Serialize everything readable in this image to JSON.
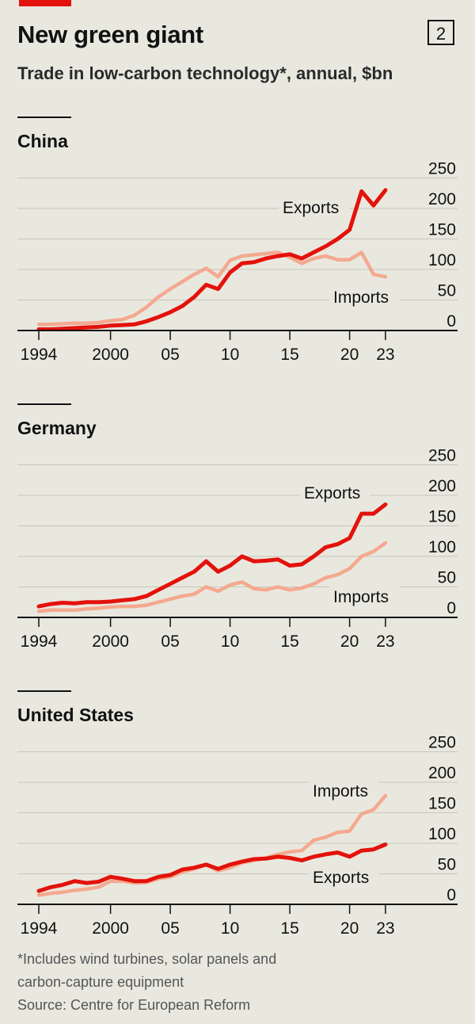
{
  "header": {
    "title": "New green giant",
    "chart_number": "2",
    "subtitle": "Trade in low-carbon technology*, annual, $bn"
  },
  "chart_data": [
    {
      "type": "line",
      "title": "China",
      "x": [
        1994,
        1995,
        1996,
        1997,
        1998,
        1999,
        2000,
        2001,
        2002,
        2003,
        2004,
        2005,
        2006,
        2007,
        2008,
        2009,
        2010,
        2011,
        2012,
        2013,
        2014,
        2015,
        2016,
        2017,
        2018,
        2019,
        2020,
        2021,
        2022,
        2023
      ],
      "x_tick_labels": [
        "1994",
        "2000",
        "05",
        "10",
        "15",
        "20",
        "23"
      ],
      "y_ticks": [
        0,
        50,
        100,
        150,
        200,
        250
      ],
      "ylim": [
        0,
        250
      ],
      "series": [
        {
          "name": "Exports",
          "color": "#e3120b",
          "values": [
            2,
            2,
            3,
            4,
            5,
            6,
            8,
            9,
            10,
            15,
            22,
            30,
            40,
            55,
            75,
            68,
            95,
            110,
            112,
            118,
            122,
            125,
            118,
            128,
            138,
            150,
            165,
            228,
            205,
            230
          ]
        },
        {
          "name": "Imports",
          "color": "#f4a98f",
          "values": [
            10,
            10,
            11,
            12,
            12,
            13,
            16,
            18,
            25,
            38,
            55,
            68,
            80,
            92,
            102,
            88,
            115,
            122,
            124,
            126,
            128,
            120,
            110,
            118,
            122,
            116,
            116,
            128,
            92,
            88
          ]
        }
      ],
      "series_labels": [
        "Exports",
        "Imports"
      ],
      "grid": true
    },
    {
      "type": "line",
      "title": "Germany",
      "x": [
        1994,
        1995,
        1996,
        1997,
        1998,
        1999,
        2000,
        2001,
        2002,
        2003,
        2004,
        2005,
        2006,
        2007,
        2008,
        2009,
        2010,
        2011,
        2012,
        2013,
        2014,
        2015,
        2016,
        2017,
        2018,
        2019,
        2020,
        2021,
        2022,
        2023
      ],
      "x_tick_labels": [
        "1994",
        "2000",
        "05",
        "10",
        "15",
        "20",
        "23"
      ],
      "y_ticks": [
        0,
        50,
        100,
        150,
        200,
        250
      ],
      "ylim": [
        0,
        250
      ],
      "series": [
        {
          "name": "Exports",
          "color": "#e3120b",
          "values": [
            18,
            22,
            24,
            23,
            25,
            25,
            26,
            28,
            30,
            35,
            45,
            55,
            65,
            75,
            92,
            75,
            85,
            100,
            92,
            93,
            95,
            85,
            87,
            100,
            115,
            120,
            130,
            170,
            170,
            185
          ]
        },
        {
          "name": "Imports",
          "color": "#f4a98f",
          "values": [
            10,
            12,
            12,
            12,
            14,
            15,
            17,
            18,
            18,
            20,
            25,
            30,
            35,
            38,
            50,
            43,
            53,
            58,
            47,
            45,
            50,
            45,
            48,
            55,
            65,
            70,
            80,
            100,
            108,
            122
          ]
        }
      ],
      "series_labels": [
        "Exports",
        "Imports"
      ],
      "grid": true
    },
    {
      "type": "line",
      "title": "United States",
      "x": [
        1994,
        1995,
        1996,
        1997,
        1998,
        1999,
        2000,
        2001,
        2002,
        2003,
        2004,
        2005,
        2006,
        2007,
        2008,
        2009,
        2010,
        2011,
        2012,
        2013,
        2014,
        2015,
        2016,
        2017,
        2018,
        2019,
        2020,
        2021,
        2022,
        2023
      ],
      "x_tick_labels": [
        "1994",
        "2000",
        "05",
        "10",
        "15",
        "20",
        "23"
      ],
      "y_ticks": [
        0,
        50,
        100,
        150,
        200,
        250
      ],
      "ylim": [
        0,
        250
      ],
      "series": [
        {
          "name": "Imports",
          "color": "#f4a98f",
          "values": [
            15,
            18,
            20,
            23,
            25,
            28,
            38,
            38,
            35,
            36,
            42,
            45,
            53,
            58,
            65,
            55,
            60,
            68,
            72,
            76,
            82,
            86,
            88,
            105,
            110,
            118,
            120,
            148,
            155,
            178
          ]
        },
        {
          "name": "Exports",
          "color": "#e3120b",
          "values": [
            22,
            28,
            32,
            38,
            35,
            37,
            45,
            42,
            38,
            38,
            45,
            48,
            57,
            60,
            65,
            58,
            65,
            70,
            74,
            75,
            78,
            76,
            72,
            78,
            82,
            85,
            78,
            88,
            90,
            98
          ]
        }
      ],
      "series_labels": [
        "Imports",
        "Exports"
      ],
      "grid": true
    }
  ],
  "footer": {
    "note_line1": "*Includes wind turbines, solar panels and",
    "note_line2": "carbon-capture equipment",
    "source": "Source: Centre for European Reform"
  }
}
